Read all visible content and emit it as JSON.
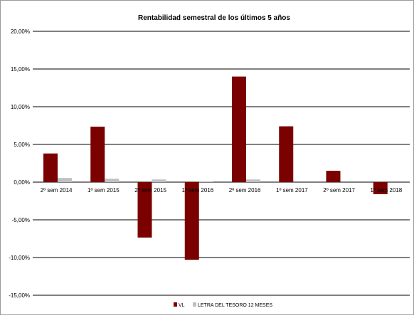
{
  "chart_data": {
    "type": "bar",
    "title": "Rentabilidad semestral de los últimos 5 años",
    "categories": [
      "2º sem 2014",
      "1º sem 2015",
      "2º sem 2015",
      "1º sem 2016",
      "2º sem 2016",
      "1º sem 2017",
      "2º sem 2017",
      "1º sem 2018"
    ],
    "series": [
      {
        "name": "VL",
        "color": "#7b0000",
        "values": [
          3.8,
          7.35,
          -7.35,
          -10.3,
          14.0,
          7.4,
          1.5,
          -1.6
        ]
      },
      {
        "name": "LETRA DEL TESORO 12 MESES",
        "color": "#c0c0c0",
        "values": [
          0.55,
          0.45,
          0.35,
          0.1,
          0.35,
          0.0,
          0.0,
          0.0
        ]
      }
    ],
    "y_ticks": [
      "20,00%",
      "15,00%",
      "10,00%",
      "5,00%",
      "0,00%",
      "-5,00%",
      "-10,00%",
      "-15,00%"
    ],
    "ylim": [
      -15,
      20
    ],
    "gridlines": true,
    "legend_position": "bottom",
    "xlabel": "",
    "ylabel": ""
  }
}
